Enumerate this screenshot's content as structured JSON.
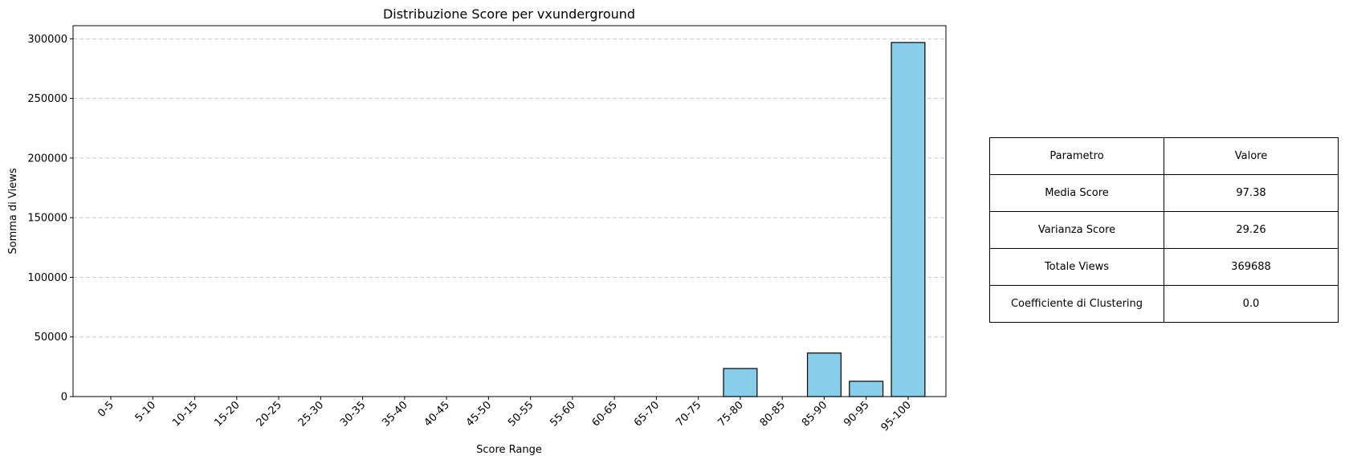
{
  "chart_data": {
    "type": "bar",
    "title": "Distribuzione Score per vxunderground",
    "xlabel": "Score Range",
    "ylabel": "Somma di Views",
    "categories": [
      "0-5",
      "5-10",
      "10-15",
      "15-20",
      "20-25",
      "25-30",
      "30-35",
      "35-40",
      "40-45",
      "45-50",
      "50-55",
      "55-60",
      "60-65",
      "65-70",
      "70-75",
      "75-80",
      "80-85",
      "85-90",
      "90-95",
      "95-100"
    ],
    "values": [
      0,
      0,
      0,
      0,
      0,
      0,
      0,
      0,
      0,
      0,
      0,
      0,
      0,
      0,
      0,
      23500,
      0,
      36500,
      12800,
      296900
    ],
    "ylim": [
      0,
      311000
    ],
    "yticks": [
      0,
      50000,
      100000,
      150000,
      200000,
      250000,
      300000
    ],
    "ytick_labels": [
      "0",
      "50000",
      "100000",
      "150000",
      "200000",
      "250000",
      "300000"
    ],
    "grid": "y, dashed",
    "bar_color": "#87CEEB",
    "edge_color": "#000000",
    "grid_color": "#c8c8c8"
  },
  "table": {
    "header": [
      "Parametro",
      "Valore"
    ],
    "rows": [
      [
        "Media Score",
        "97.38"
      ],
      [
        "Varianza Score",
        "29.26"
      ],
      [
        "Totale Views",
        "369688"
      ],
      [
        "Coefficiente di Clustering",
        "0.0"
      ]
    ]
  }
}
